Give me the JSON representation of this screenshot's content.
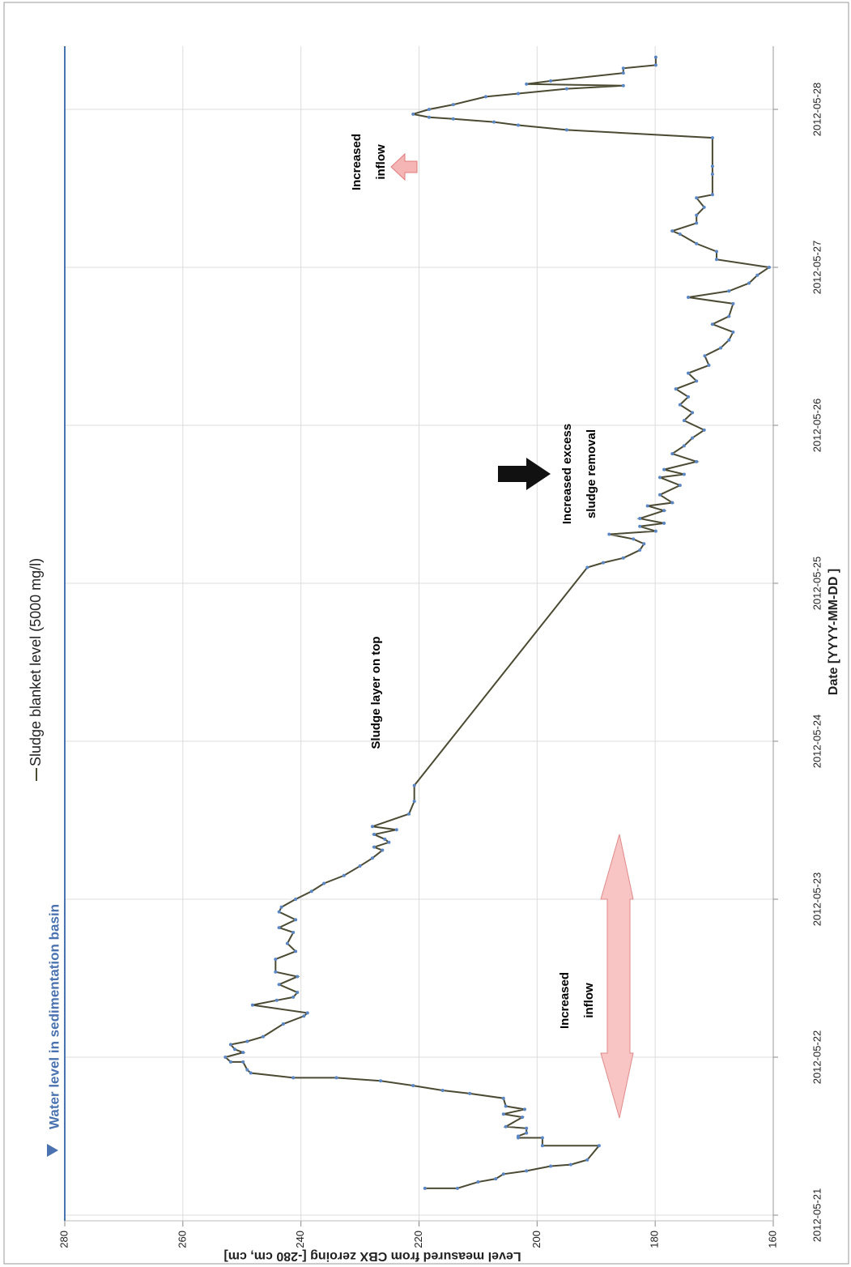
{
  "chart_data": {
    "type": "line",
    "legend_text": "Sludge blanket level (5000 mg/l)",
    "xlabel": "Date [YYYY-MM-DD ]",
    "ylabel": "Level measured from CBX zeroing [-280 cm, cm]",
    "xlim": [
      0,
      7.4
    ],
    "ylim": [
      160,
      280
    ],
    "xticks": [
      {
        "value": 0,
        "label": "2012-05-21"
      },
      {
        "value": 1,
        "label": "2012-05-22"
      },
      {
        "value": 2,
        "label": "2012-05-23"
      },
      {
        "value": 3,
        "label": "2012-05-24"
      },
      {
        "value": 4,
        "label": "2012-05-25"
      },
      {
        "value": 5,
        "label": "2012-05-26"
      },
      {
        "value": 6,
        "label": "2012-05-27"
      },
      {
        "value": 7,
        "label": "2012-05-28"
      }
    ],
    "yticks": [
      160,
      180,
      200,
      220,
      240,
      260,
      280
    ],
    "grid": true,
    "reference_line": {
      "label": "Water level in sedimentation basin",
      "value": 280,
      "color": "#4a72b0"
    },
    "annotations": [
      {
        "lines": [
          "Sludge layer on top"
        ]
      },
      {
        "lines": [
          "Increased excess",
          "sludge removal"
        ]
      },
      {
        "lines": [
          "Increased",
          "inflow"
        ]
      },
      {
        "lines": [
          "Increased",
          "inflow"
        ]
      }
    ],
    "series": [
      {
        "name": "Sludge blanket level (5000 mg/l)",
        "color": "#4b4a32",
        "marker_color": "#5b86c5",
        "x": [
          0.17,
          0.17,
          0.21,
          0.23,
          0.26,
          0.28,
          0.31,
          0.32,
          0.35,
          0.44,
          0.44,
          0.49,
          0.49,
          0.5,
          0.52,
          0.55,
          0.56,
          0.62,
          0.64,
          0.67,
          0.69,
          0.74,
          0.77,
          0.79,
          0.82,
          0.85,
          0.87,
          0.87,
          0.9,
          0.92,
          0.97,
          0.97,
          1.0,
          1.03,
          1.05,
          1.08,
          1.1,
          1.13,
          1.21,
          1.26,
          1.28,
          1.33,
          1.36,
          1.38,
          1.41,
          1.46,
          1.51,
          1.54,
          1.62,
          1.67,
          1.72,
          1.79,
          1.82,
          1.87,
          1.92,
          1.95,
          2.0,
          2.05,
          2.1,
          2.15,
          2.21,
          2.26,
          2.31,
          2.33,
          2.36,
          2.38,
          2.41,
          2.44,
          2.46,
          2.54,
          2.62,
          2.72,
          4.1,
          4.13,
          4.16,
          4.21,
          4.25,
          4.28,
          4.31,
          4.33,
          4.36,
          4.38,
          4.41,
          4.46,
          4.49,
          4.51,
          4.56,
          4.62,
          4.67,
          4.69,
          4.72,
          4.77,
          4.82,
          4.87,
          4.92,
          4.97,
          5.03,
          5.08,
          5.13,
          5.18,
          5.23,
          5.28,
          5.33,
          5.38,
          5.44,
          5.49,
          5.54,
          5.59,
          5.64,
          5.69,
          5.77,
          5.81,
          5.85,
          5.9,
          5.95,
          6.0,
          6.05,
          6.1,
          6.15,
          6.21,
          6.23,
          6.28,
          6.33,
          6.38,
          6.44,
          6.46,
          6.59,
          6.64,
          6.82,
          6.87,
          6.9,
          6.92,
          6.94,
          6.95,
          6.97,
          7.0,
          7.03,
          7.08,
          7.1,
          7.13,
          7.15,
          7.16,
          7.18,
          7.23,
          7.26,
          7.28,
          7.33
        ],
        "values": [
          219.0,
          213.5,
          210.0,
          207.0,
          205.7,
          201.8,
          197.7,
          194.3,
          191.5,
          189.5,
          199.1,
          199.1,
          203.2,
          203.2,
          201.8,
          201.8,
          205.3,
          202.5,
          205.7,
          202.1,
          205.3,
          205.7,
          211.4,
          216.0,
          221.0,
          226.5,
          234.0,
          241.3,
          248.5,
          249.1,
          249.8,
          251.9,
          252.8,
          249.8,
          251.2,
          251.9,
          249.1,
          246.4,
          243.0,
          239.5,
          238.9,
          248.2,
          244.1,
          241.3,
          240.6,
          243.7,
          240.6,
          244.3,
          244.3,
          240.9,
          242.3,
          241.3,
          243.7,
          240.9,
          243.7,
          243.3,
          240.9,
          238.2,
          236.1,
          232.7,
          230.0,
          227.9,
          226.2,
          227.6,
          225.1,
          225.8,
          227.6,
          223.8,
          227.9,
          221.7,
          220.8,
          220.8,
          191.5,
          188.8,
          185.4,
          182.6,
          181.9,
          183.7,
          187.8,
          179.9,
          182.6,
          178.5,
          182.6,
          178.5,
          181.3,
          177.1,
          179.2,
          175.8,
          179.2,
          175.1,
          178.5,
          173.0,
          177.1,
          175.1,
          173.7,
          171.7,
          175.1,
          173.7,
          175.8,
          174.4,
          176.5,
          173.0,
          174.4,
          170.9,
          171.6,
          168.9,
          167.5,
          166.8,
          170.3,
          167.5,
          166.8,
          174.4,
          167.5,
          164.1,
          162.7,
          160.7,
          169.6,
          169.6,
          173.0,
          175.8,
          177.1,
          173.0,
          173.0,
          171.7,
          173.0,
          170.3,
          170.3,
          170.3,
          170.3,
          195.0,
          203.2,
          207.3,
          214.2,
          218.3,
          221.0,
          218.3,
          214.2,
          208.7,
          203.2,
          195.0,
          185.4,
          201.8,
          197.7,
          185.4,
          185.4,
          179.9,
          179.9
        ]
      }
    ]
  }
}
